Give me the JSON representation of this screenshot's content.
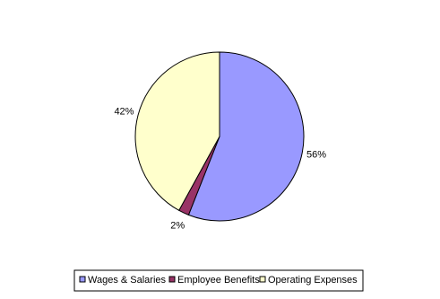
{
  "chart_data": {
    "type": "pie",
    "categories": [
      "Wages & Salaries",
      "Employee Benefits",
      "Operating Expenses"
    ],
    "values": [
      56,
      2,
      42
    ],
    "value_labels": [
      "56%",
      "2%",
      "42%"
    ],
    "colors": [
      "#9999ff",
      "#993366",
      "#ffffcc"
    ],
    "legend": "bottom"
  }
}
